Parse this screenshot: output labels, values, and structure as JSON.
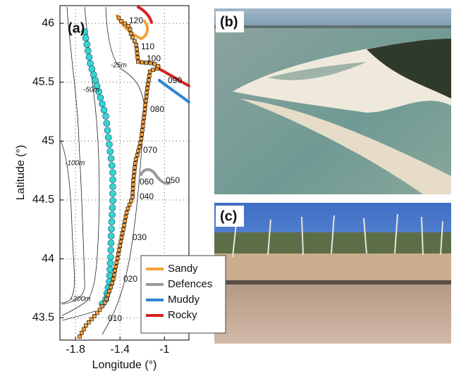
{
  "panels": {
    "a": "(a)",
    "b": "(b)",
    "c": "(c)"
  },
  "map": {
    "xlabel": "Longitude (°)",
    "ylabel": "Latitude (°)",
    "xlim": [
      -1.94,
      -0.78
    ],
    "ylim": [
      43.31,
      46.15
    ],
    "xticks": [
      -1.8,
      -1.4,
      -1
    ],
    "yticks": [
      43.5,
      44,
      44.5,
      45,
      45.5,
      46
    ],
    "grid": true,
    "legend": [
      {
        "name": "Sandy",
        "color": "#f5a03a"
      },
      {
        "name": "Defences",
        "color": "#9a9a9a"
      },
      {
        "name": "Muddy",
        "color": "#2f86d6"
      },
      {
        "name": "Rocky",
        "color": "#d62020"
      }
    ],
    "station_labels": [
      "120",
      "110",
      "100",
      "090",
      "080",
      "070",
      "060",
      "050",
      "040",
      "030",
      "020",
      "010"
    ],
    "depth_labels": [
      "-25m",
      "-50m",
      "-100m",
      "-200m"
    ]
  }
}
